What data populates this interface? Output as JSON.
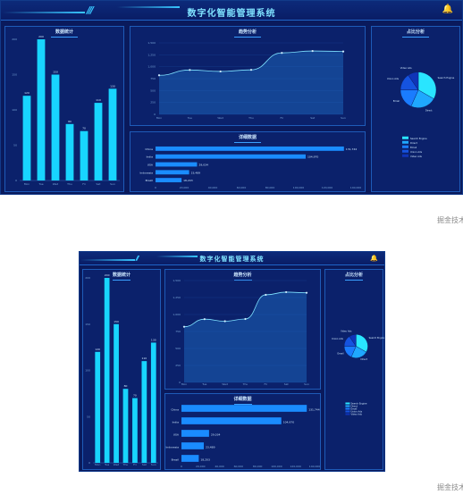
{
  "page": {
    "title": "数字化智能管理系统",
    "watermark": "掘金技术社区"
  },
  "panels": {
    "bar": "数据统计",
    "line": "趋势分析",
    "pie": "占比分析",
    "hbar": "详细数据"
  },
  "colors": {
    "bg": "#0a1a5c",
    "accent": "#38c6ff",
    "bar": "#18d5ff"
  },
  "icons": {
    "bell": "bell-icon",
    "slashes": "slash-decoration"
  },
  "chart_data": [
    {
      "type": "bar",
      "categories": [
        "Mon",
        "Tue",
        "Wed",
        "Thu",
        "Fri",
        "Sat",
        "Sun"
      ],
      "values": [
        120,
        200,
        150,
        80,
        70,
        110,
        130
      ],
      "ylim": [
        0,
        200
      ]
    },
    {
      "type": "area",
      "categories": [
        "Mon",
        "Tue",
        "Wed",
        "Thu",
        "Fri",
        "Sat",
        "Sun"
      ],
      "values": [
        820,
        932,
        901,
        934,
        1290,
        1330,
        1320
      ],
      "ylim": [
        0,
        1500
      ]
    },
    {
      "type": "pie",
      "labels": [
        "Search Engine",
        "Direct",
        "Email",
        "Union Ads",
        "Video Ads"
      ],
      "values": [
        1048,
        735,
        580,
        484,
        300
      ],
      "colors": [
        "#29e5ff",
        "#1fa8ff",
        "#1a7cff",
        "#1553e0",
        "#0f34b8"
      ]
    },
    {
      "type": "bar-horizontal",
      "categories": [
        "Brazil",
        "Indonesia",
        "USA",
        "India",
        "China"
      ],
      "values": [
        18203,
        23489,
        29034,
        104970,
        131744
      ],
      "xlim": [
        0,
        140000
      ]
    }
  ]
}
